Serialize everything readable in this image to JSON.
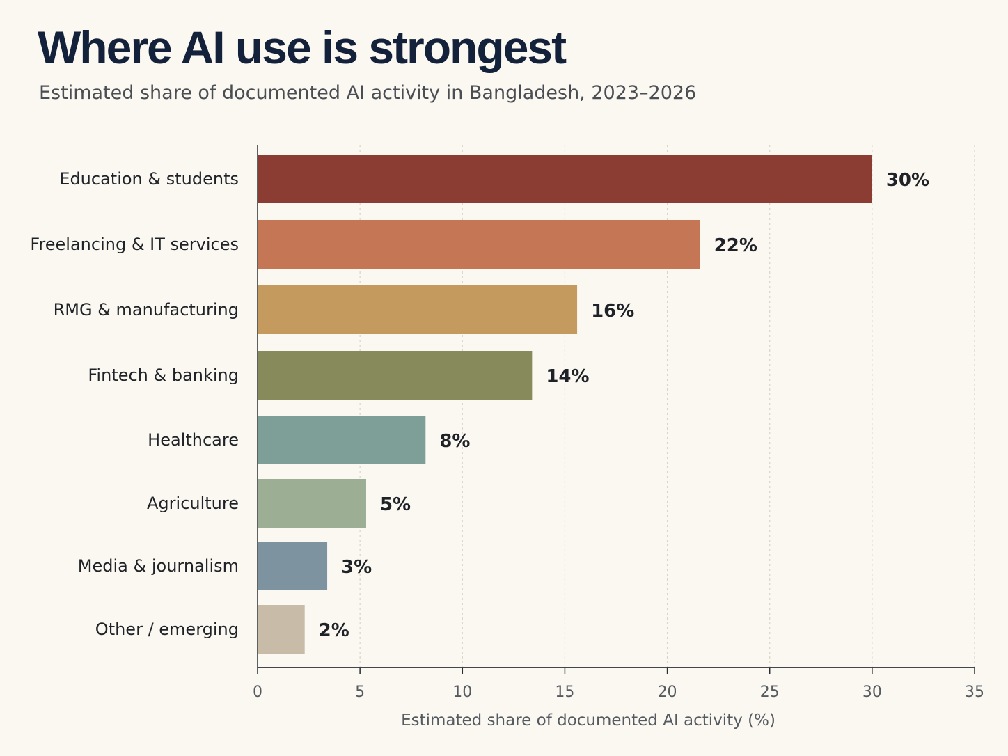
{
  "chart_data": {
    "type": "bar",
    "orientation": "horizontal",
    "title": "Where AI use is strongest",
    "subtitle": "Estimated share of documented AI activity in Bangladesh, 2023–2026",
    "xlabel": "Estimated share of documented AI activity (%)",
    "ylabel": "",
    "xlim": [
      0,
      35
    ],
    "xticks": [
      "0",
      "5",
      "10",
      "15",
      "20",
      "25",
      "30",
      "35"
    ],
    "grid": "vertical dotted",
    "categories": [
      "Education & students",
      "Freelancing & IT services",
      "RMG & manufacturing",
      "Fintech & banking",
      "Healthcare",
      "Agriculture",
      "Media & journalism",
      "Other / emerging"
    ],
    "values": [
      30,
      22,
      16,
      14,
      8,
      5,
      3,
      2
    ],
    "bar_values": [
      30,
      21.6,
      15.6,
      13.4,
      8.2,
      5.3,
      3.4,
      2.3
    ],
    "value_labels": [
      "30%",
      "22%",
      "16%",
      "14%",
      "8%",
      "5%",
      "3%",
      "2%"
    ],
    "colors": [
      "#8c3d33",
      "#c47655",
      "#c49a5e",
      "#878a5a",
      "#7e9e98",
      "#9cae94",
      "#7d93a0",
      "#c8bba8"
    ]
  }
}
